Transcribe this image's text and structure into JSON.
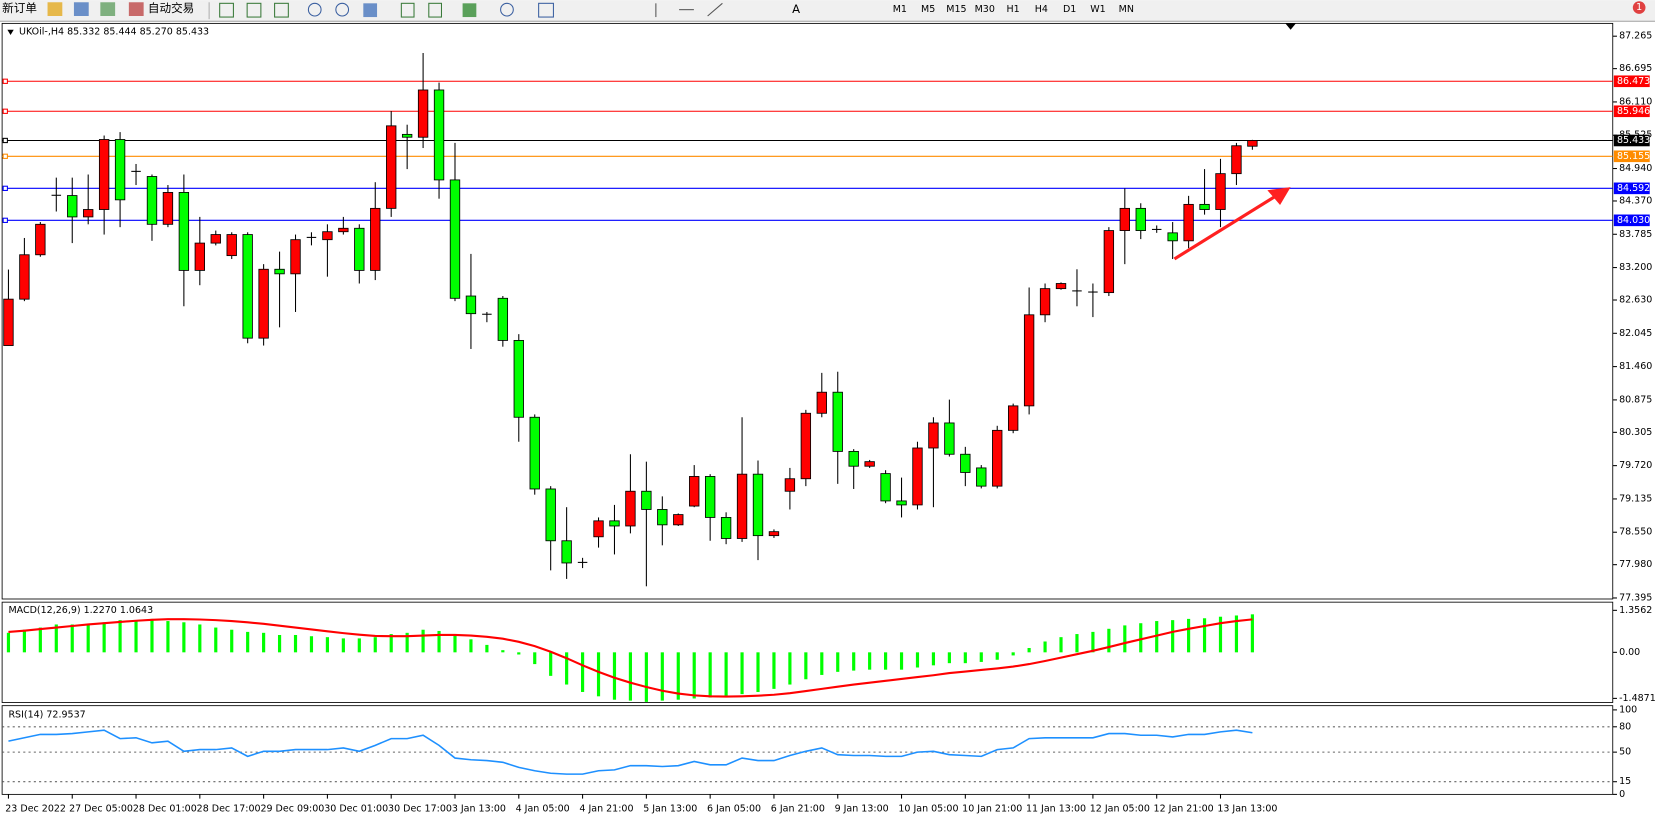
{
  "toolbar": {
    "new_order": "新订单",
    "auto_trading": "自动交易",
    "text_tool": "A",
    "notifications": 1,
    "timeframes": [
      "M1",
      "M5",
      "M15",
      "M30",
      "H1",
      "H4",
      "D1",
      "W1",
      "MN"
    ]
  },
  "chart_data": [
    {
      "type": "candlestick",
      "title": "UKOil-,H4 85.332 85.444 85.270 85.433",
      "up_color": "#ff0000",
      "down_color": "#00ff00",
      "categories": [
        "23 Dec 2022",
        null,
        null,
        null,
        "27 Dec 05:00",
        null,
        null,
        null,
        "28 Dec 01:00",
        null,
        null,
        null,
        "28 Dec 17:00",
        null,
        null,
        null,
        "29 Dec 09:00",
        null,
        null,
        null,
        "30 Dec 01:00",
        null,
        null,
        null,
        "30 Dec 17:00",
        null,
        null,
        null,
        "3 Jan 13:00",
        null,
        null,
        null,
        "4 Jan 05:00",
        null,
        null,
        null,
        "4 Jan 21:00",
        null,
        null,
        null,
        "5 Jan 13:00",
        null,
        null,
        null,
        "6 Jan 05:00",
        null,
        null,
        null,
        "6 Jan 21:00",
        null,
        null,
        null,
        "9 Jan 13:00",
        null,
        null,
        null,
        "10 Jan 05:00",
        null,
        null,
        null,
        "10 Jan 21:00",
        null,
        null,
        null,
        "11 Jan 13:00",
        null,
        null,
        null,
        "12 Jan 05:00",
        null,
        null,
        null,
        "12 Jan 21:00",
        null,
        null,
        null,
        "13 Jan 13:00",
        null,
        null
      ],
      "open": [
        81.83,
        82.645,
        83.425,
        84.46,
        84.465,
        84.09,
        84.22,
        85.45,
        84.87,
        84.8,
        83.96,
        84.52,
        83.15,
        83.63,
        83.41,
        83.78,
        81.96,
        83.17,
        83.09,
        83.72,
        83.69,
        83.83,
        83.89,
        83.15,
        84.24,
        85.54,
        85.49,
        86.32,
        84.74,
        82.7,
        82.37,
        82.66,
        81.92,
        80.57,
        79.31,
        78.4,
        78.01,
        78.47,
        78.75,
        78.66,
        79.27,
        78.95,
        78.68,
        79.01,
        79.53,
        78.81,
        78.44,
        79.57,
        78.49,
        79.27,
        79.49,
        80.64,
        81.01,
        79.97,
        79.71,
        79.58,
        79.1,
        79.03,
        80.03,
        80.47,
        79.92,
        79.68,
        79.36,
        80.34,
        80.77,
        82.37,
        82.83,
        82.8,
        82.76,
        82.76,
        83.85,
        84.24,
        83.87,
        83.81,
        83.67,
        84.31,
        84.22,
        84.85,
        85.332
      ],
      "high": [
        83.165,
        83.72,
        84.0,
        84.78,
        84.78,
        84.835,
        85.52,
        85.58,
        85.02,
        84.835,
        84.65,
        84.835,
        84.09,
        83.85,
        83.82,
        83.82,
        83.26,
        83.48,
        83.78,
        83.82,
        83.96,
        84.09,
        83.96,
        84.7,
        85.95,
        85.71,
        86.97,
        86.45,
        85.39,
        83.44,
        82.42,
        82.7,
        82.03,
        80.62,
        79.36,
        78.99,
        78.1,
        78.81,
        79.03,
        79.92,
        79.79,
        79.18,
        78.88,
        79.73,
        79.57,
        78.9,
        80.57,
        79.81,
        78.6,
        79.68,
        80.7,
        81.35,
        81.37,
        80.01,
        79.82,
        79.64,
        79.51,
        80.14,
        80.57,
        80.88,
        80.05,
        79.73,
        80.42,
        80.81,
        82.85,
        82.92,
        82.94,
        83.17,
        82.92,
        83.91,
        84.59,
        84.33,
        83.94,
        84.0,
        84.46,
        84.93,
        85.11,
        85.39,
        85.444
      ],
      "low": [
        81.83,
        82.61,
        83.39,
        84.185,
        83.63,
        83.96,
        83.78,
        83.91,
        84.65,
        83.67,
        83.91,
        82.52,
        82.89,
        83.59,
        83.35,
        81.87,
        81.83,
        82.15,
        82.42,
        83.59,
        83.04,
        83.78,
        82.92,
        82.98,
        84.09,
        84.93,
        85.3,
        84.41,
        82.61,
        81.77,
        82.24,
        81.81,
        80.14,
        79.21,
        77.88,
        77.73,
        77.92,
        78.28,
        78.16,
        78.53,
        77.6,
        78.32,
        78.66,
        78.99,
        78.4,
        78.34,
        78.38,
        78.06,
        78.45,
        78.95,
        79.36,
        80.57,
        79.4,
        79.31,
        79.68,
        79.06,
        78.81,
        78.95,
        78.99,
        79.88,
        79.36,
        79.32,
        79.32,
        80.29,
        80.62,
        82.24,
        82.81,
        82.52,
        82.33,
        82.7,
        83.26,
        83.7,
        83.81,
        83.35,
        83.54,
        84.13,
        83.91,
        84.65,
        85.27
      ],
      "close": [
        82.645,
        83.425,
        83.96,
        84.47,
        84.09,
        84.22,
        85.45,
        84.39,
        84.89,
        83.96,
        84.52,
        83.15,
        83.63,
        83.78,
        83.78,
        81.96,
        83.17,
        83.09,
        83.69,
        83.73,
        83.83,
        83.89,
        83.15,
        84.24,
        85.69,
        85.49,
        86.32,
        84.74,
        82.66,
        82.39,
        82.38,
        81.92,
        80.57,
        79.31,
        78.4,
        78.01,
        78.02,
        78.75,
        78.66,
        79.27,
        78.95,
        78.68,
        78.86,
        79.53,
        78.81,
        78.44,
        79.57,
        78.49,
        78.56,
        79.49,
        80.64,
        81.01,
        79.97,
        79.71,
        79.79,
        79.1,
        79.03,
        80.03,
        80.47,
        79.92,
        79.6,
        79.36,
        80.34,
        80.77,
        82.37,
        82.83,
        82.92,
        82.79,
        82.77,
        83.85,
        84.24,
        83.85,
        83.87,
        83.67,
        84.31,
        84.22,
        84.85,
        85.34,
        85.433
      ],
      "ylim": [
        77.377,
        87.49
      ],
      "yticks": [
        87.265,
        86.695,
        {
          "value": 86.11,
          "label": "86.110"
        },
        85.525,
        {
          "value": 84.94,
          "label": "84.940"
        },
        {
          "value": 84.37,
          "label": "84.370"
        },
        83.785,
        {
          "value": 83.2,
          "label": "83.200"
        },
        {
          "value": 82.63,
          "label": "82.630"
        },
        82.045,
        {
          "value": 81.46,
          "label": "81.460"
        },
        80.875,
        80.305,
        {
          "value": 79.72,
          "label": "79.720"
        },
        79.135,
        {
          "value": 78.55,
          "label": "78.550"
        },
        {
          "value": 77.98,
          "label": "77.980"
        },
        77.395
      ],
      "hlines": [
        {
          "value": 86.473,
          "color": "#ff0000"
        },
        {
          "value": 85.946,
          "color": "#ff0000"
        },
        {
          "value": 85.433,
          "color": "#000000"
        },
        {
          "value": 85.155,
          "color": "#ff8c00"
        },
        {
          "value": 84.592,
          "color": "#0000ff"
        },
        {
          "value": 84.03,
          "label": "84.030",
          "color": "#0000ff"
        }
      ]
    },
    {
      "type": "macd",
      "title": "MACD(12,26,9) 1.2270 1.0643",
      "series": [
        {
          "name": "MACD",
          "color": "#00ff00",
          "values": [
            0.63,
            0.73,
            0.8,
            0.9,
            0.9,
            0.9,
            0.97,
            1.04,
            1.04,
            1.08,
            1.01,
            0.97,
            0.9,
            0.8,
            0.73,
            0.66,
            0.63,
            0.56,
            0.56,
            0.52,
            0.49,
            0.45,
            0.45,
            0.49,
            0.59,
            0.63,
            0.73,
            0.69,
            0.56,
            0.42,
            0.24,
            0.07,
            -0.07,
            -0.38,
            -0.76,
            -1.04,
            -1.28,
            -1.42,
            -1.53,
            -1.56,
            -1.6,
            -1.56,
            -1.53,
            -1.49,
            -1.46,
            -1.42,
            -1.35,
            -1.28,
            -1.18,
            -1.04,
            -0.87,
            -0.73,
            -0.63,
            -0.59,
            -0.56,
            -0.56,
            -0.56,
            -0.49,
            -0.42,
            -0.35,
            -0.35,
            -0.31,
            -0.24,
            -0.1,
            0.14,
            0.35,
            0.49,
            0.59,
            0.66,
            0.76,
            0.87,
            0.94,
            1.01,
            1.04,
            1.08,
            1.1,
            1.15,
            1.19,
            1.227
          ]
        },
        {
          "name": "Signal",
          "color": "#ff0000",
          "values": [
            0.66,
            0.7,
            0.75,
            0.8,
            0.85,
            0.9,
            0.94,
            0.98,
            1.02,
            1.05,
            1.07,
            1.07,
            1.06,
            1.04,
            1.01,
            0.97,
            0.92,
            0.86,
            0.8,
            0.74,
            0.68,
            0.62,
            0.57,
            0.53,
            0.52,
            0.52,
            0.54,
            0.56,
            0.56,
            0.54,
            0.5,
            0.44,
            0.34,
            0.2,
            0.02,
            -0.19,
            -0.42,
            -0.63,
            -0.82,
            -0.98,
            -1.12,
            -1.24,
            -1.33,
            -1.39,
            -1.42,
            -1.43,
            -1.42,
            -1.4,
            -1.37,
            -1.32,
            -1.25,
            -1.18,
            -1.11,
            -1.04,
            -0.98,
            -0.92,
            -0.86,
            -0.8,
            -0.74,
            -0.67,
            -0.62,
            -0.57,
            -0.52,
            -0.46,
            -0.38,
            -0.28,
            -0.17,
            -0.06,
            0.05,
            0.17,
            0.3,
            0.42,
            0.54,
            0.66,
            0.76,
            0.85,
            0.94,
            1.01,
            1.0643
          ]
        }
      ],
      "ylim": [
        -1.62,
        1.62
      ],
      "yticks": [
        1.3562,
        {
          "value": 0,
          "label": "0.00"
        },
        -1.4871
      ]
    },
    {
      "type": "rsi",
      "title": "RSI(14) 72.9537",
      "series": [
        {
          "name": "RSI",
          "color": "#1e90ff",
          "values": [
            63,
            67,
            71,
            71,
            72,
            74,
            76,
            66,
            67,
            61,
            63,
            51,
            53,
            53,
            55,
            45,
            51,
            51,
            53,
            53,
            53,
            55,
            51,
            58,
            66,
            66,
            70,
            58,
            43,
            41,
            40,
            38,
            32,
            28,
            25,
            24,
            24,
            28,
            29,
            34,
            34,
            33,
            34,
            39,
            35,
            35,
            43,
            40,
            40,
            46,
            51,
            55,
            47,
            46,
            46,
            45,
            45,
            50,
            51,
            47,
            46,
            45,
            53,
            55,
            66,
            67,
            67,
            67,
            67,
            72,
            72,
            70,
            70,
            68,
            71,
            71,
            74,
            76,
            72.9537
          ]
        }
      ],
      "ylim": [
        0,
        105
      ],
      "yticks": [
        100,
        80,
        50,
        15,
        0
      ],
      "levels": [
        80,
        50,
        15
      ]
    }
  ]
}
